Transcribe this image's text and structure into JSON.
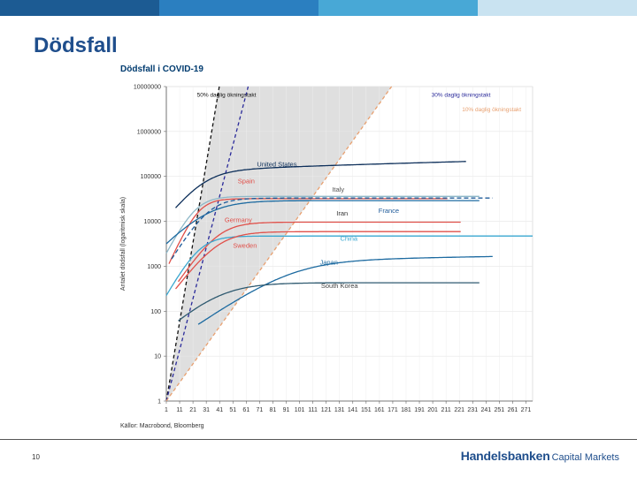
{
  "slide": {
    "title": "Dödsfall",
    "page_number": "10",
    "brand": "Handelsbanken",
    "brand_sub": "Capital Markets",
    "bar_colors": [
      "#1c5b93",
      "#1c5b93",
      "#2b7fc0",
      "#48a8d6",
      "#9ccbe6",
      "#c9e3f1"
    ]
  },
  "chart_data": {
    "type": "line",
    "title": "Dödsfall i COVID-19",
    "ylabel": "Antalet dödsfall (logaritmisk skala)",
    "xlabel": "",
    "source": "Källor: Macrobond, Bloomberg",
    "y_scale": "log",
    "ylim": [
      1,
      10000000
    ],
    "y_ticks": [
      "1",
      "10",
      "100",
      "1000",
      "10000",
      "100000",
      "1000000",
      "10000000"
    ],
    "xlim": [
      1,
      276
    ],
    "x_ticks": [
      "1",
      "11",
      "21",
      "31",
      "41",
      "51",
      "61",
      "71",
      "81",
      "91",
      "101",
      "111",
      "121",
      "131",
      "141",
      "151",
      "161",
      "171",
      "181",
      "191",
      "201",
      "211",
      "221",
      "231",
      "241",
      "251",
      "261",
      "271"
    ],
    "grid": true,
    "growth_lines": [
      {
        "name": "50% daglig ökningstakt",
        "rate": 0.5,
        "color": "#111111",
        "style": "dashed"
      },
      {
        "name": "30% daglig ökningstakt",
        "rate": 0.3,
        "color": "#2a2a9a",
        "style": "dashed"
      },
      {
        "name": "10% daglig ökningstakt",
        "rate": 0.1,
        "color": "#e8a070",
        "style": "dashed"
      }
    ],
    "series": [
      {
        "name": "United States",
        "color": "#0d2f5a",
        "label_color": "#0d2f5a",
        "start": 8,
        "end": 226,
        "final": 215000,
        "k": 0.085,
        "mid": 20,
        "label_day": 84,
        "label_value": 165000
      },
      {
        "name": "Spain",
        "color": "#e0504a",
        "label_color": "#e0504a",
        "start": 3,
        "end": 212,
        "final": 32000,
        "k": 0.15,
        "mid": 22,
        "label_day": 61,
        "label_value": 70000
      },
      {
        "name": "Italy",
        "color": "#8fb8c8",
        "label_color": "#555555",
        "start": 1,
        "end": 236,
        "final": 36000,
        "k": 0.13,
        "mid": 22,
        "label_day": 130,
        "label_value": 46000
      },
      {
        "name": "Iran",
        "color": "#1c6aa0",
        "label_color": "#333333",
        "start": 1,
        "end": 236,
        "final": 29000,
        "k": 0.07,
        "mid": 30,
        "label_day": 133,
        "label_value": 13500
      },
      {
        "name": "France",
        "color": "#1f5b9a",
        "style": "dashed",
        "label_color": "#1f5b9a",
        "start": 5,
        "end": 246,
        "final": 33000,
        "k": 0.11,
        "mid": 28,
        "label_day": 168,
        "label_value": 15500
      },
      {
        "name": "Germany",
        "color": "#e0504a",
        "label_color": "#e0504a",
        "start": 10,
        "end": 222,
        "final": 9600,
        "k": 0.1,
        "mid": 30,
        "label_day": 55,
        "label_value": 9500
      },
      {
        "name": "China",
        "color": "#3aa7d0",
        "label_color": "#3aa7d0",
        "start": 1,
        "end": 276,
        "final": 4700,
        "k": 0.12,
        "mid": 25,
        "label_day": 138,
        "label_value": 3700
      },
      {
        "name": "Sweden",
        "color": "#e0504a",
        "label_color": "#e0504a",
        "start": 8,
        "end": 222,
        "final": 5900,
        "k": 0.09,
        "mid": 32,
        "label_day": 60,
        "label_value": 2600
      },
      {
        "name": "Japan",
        "color": "#1c6aa0",
        "label_color": "#1c6aa0",
        "start": 25,
        "end": 246,
        "final": 1650,
        "k": 0.045,
        "mid": 70,
        "label_day": 123,
        "label_value": 1080
      },
      {
        "name": "South Korea",
        "color": "#2f5a70",
        "label_color": "#444444",
        "start": 10,
        "end": 236,
        "final": 430,
        "k": 0.06,
        "mid": 30,
        "label_day": 131,
        "label_value": 330
      }
    ]
  }
}
